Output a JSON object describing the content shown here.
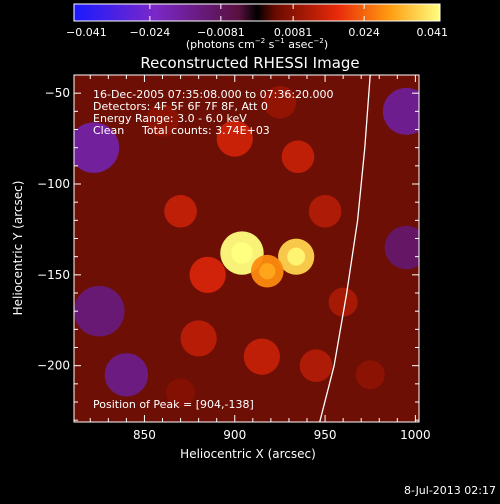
{
  "chart_data": {
    "type": "heatmap",
    "title": "Reconstructed RHESSI Image",
    "xlabel": "Heliocentric X (arcsec)",
    "ylabel": "Heliocentric Y (arcsec)",
    "xlim": [
      811,
      1002
    ],
    "ylim": [
      -231,
      -40
    ],
    "x_ticks": [
      850,
      900,
      950,
      1000
    ],
    "x_tick_labels": [
      "850",
      "900",
      "950",
      "1000"
    ],
    "y_ticks": [
      -50,
      -100,
      -150,
      -200
    ],
    "y_tick_labels": [
      "−50",
      "−100",
      "−150",
      "−200"
    ],
    "colorbar": {
      "range": [
        -0.041,
        0.041
      ],
      "ticks": [
        -0.041,
        -0.024,
        -0.0081,
        0.0081,
        0.024,
        0.041
      ],
      "tick_labels": [
        "−0.041",
        "−0.024",
        "−0.0081",
        "0.0081",
        "0.024",
        "0.041"
      ],
      "unit_label": "(photons cm",
      "unit_exp1": "−2",
      "unit_mid": " s",
      "unit_exp2": "−1",
      "unit_mid2": " asec",
      "unit_exp3": "−2",
      "unit_end": ")"
    },
    "annotations": {
      "time": "16-Dec-2005 07:35:08.000 to 07:36:20.000",
      "detectors": "Detectors: 4F 5F 6F 7F 8F, Att 0",
      "energy": "Energy Range: 3.0 - 6.0 keV",
      "clean_label": "Clean",
      "counts": "Total counts: 3.74E+03",
      "peak": "Position of Peak = [904,-138]"
    },
    "peak_position": [
      904,
      -138
    ],
    "limb_curve": [
      [
        947,
        -231
      ],
      [
        955,
        -200
      ],
      [
        962,
        -160
      ],
      [
        968,
        -120
      ],
      [
        972,
        -80
      ],
      [
        975,
        -40
      ]
    ],
    "sources": [
      {
        "x": 904,
        "y": -138,
        "flux": 0.041,
        "r": 12
      },
      {
        "x": 934,
        "y": -140,
        "flux": 0.036,
        "r": 10
      },
      {
        "x": 918,
        "y": -148,
        "flux": 0.028,
        "r": 9
      },
      {
        "x": 885,
        "y": -150,
        "flux": 0.016,
        "r": 10
      },
      {
        "x": 870,
        "y": -115,
        "flux": 0.014,
        "r": 9
      },
      {
        "x": 900,
        "y": -75,
        "flux": 0.015,
        "r": 10
      },
      {
        "x": 935,
        "y": -85,
        "flux": 0.014,
        "r": 9
      },
      {
        "x": 950,
        "y": -115,
        "flux": 0.012,
        "r": 9
      },
      {
        "x": 880,
        "y": -185,
        "flux": 0.013,
        "r": 10
      },
      {
        "x": 915,
        "y": -195,
        "flux": 0.014,
        "r": 10
      },
      {
        "x": 945,
        "y": -200,
        "flux": 0.012,
        "r": 9
      },
      {
        "x": 960,
        "y": -165,
        "flux": 0.011,
        "r": 8
      },
      {
        "x": 860,
        "y": -65,
        "flux": 0.008,
        "r": 9
      },
      {
        "x": 925,
        "y": -55,
        "flux": 0.009,
        "r": 9
      },
      {
        "x": 975,
        "y": -205,
        "flux": 0.008,
        "r": 8
      },
      {
        "x": 870,
        "y": -215,
        "flux": 0.007,
        "r": 8
      },
      {
        "x": 822,
        "y": -80,
        "flux": -0.018,
        "r": 14
      },
      {
        "x": 825,
        "y": -170,
        "flux": -0.012,
        "r": 14
      },
      {
        "x": 995,
        "y": -60,
        "flux": -0.016,
        "r": 13
      },
      {
        "x": 995,
        "y": -135,
        "flux": -0.01,
        "r": 12
      },
      {
        "x": 840,
        "y": -205,
        "flux": -0.014,
        "r": 12
      }
    ]
  },
  "footer": {
    "date": "8-Jul-2013 02:17"
  }
}
